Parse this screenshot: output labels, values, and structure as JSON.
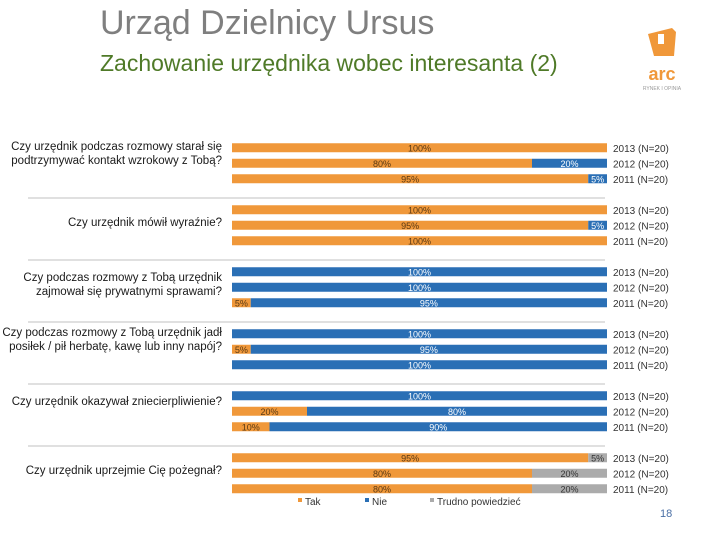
{
  "header": {
    "title": "Urząd Dzielnicy Ursus",
    "subtitle": "Zachowanie urzędnika wobec interesanta (2)"
  },
  "logo": {
    "name": "arc",
    "tagline": "RYNEK I OPINIA"
  },
  "colors": {
    "tak": "#f0983a",
    "nie": "#2a6fb5",
    "trudno": "#ababab",
    "divider": "#c0c0c0"
  },
  "page_number": "18",
  "chart_data": {
    "type": "bar",
    "stacked": true,
    "orientation": "horizontal",
    "x_range": [
      0,
      100
    ],
    "legend": [
      {
        "key": "tak",
        "label": "Tak"
      },
      {
        "key": "nie",
        "label": "Nie"
      },
      {
        "key": "trudno",
        "label": "Trudno powiedzieć"
      }
    ],
    "groups": [
      {
        "question": "Czy urzędnik podczas rozmowy starał się podtrzymywać kontakt wzrokowy z Tobą?",
        "rows": [
          {
            "year": "2013 (N=20)",
            "values": [
              100,
              0,
              0
            ]
          },
          {
            "year": "2012 (N=20)",
            "values": [
              80,
              20,
              0
            ]
          },
          {
            "year": "2011 (N=20)",
            "values": [
              95,
              5,
              0
            ]
          }
        ]
      },
      {
        "question": "Czy urzędnik mówił wyraźnie?",
        "rows": [
          {
            "year": "2013 (N=20)",
            "values": [
              100,
              0,
              0
            ]
          },
          {
            "year": "2012 (N=20)",
            "values": [
              95,
              5,
              0
            ]
          },
          {
            "year": "2011 (N=20)",
            "values": [
              100,
              0,
              0
            ]
          }
        ]
      },
      {
        "question": "Czy podczas rozmowy z Tobą urzędnik zajmował się prywatnymi sprawami?",
        "rows": [
          {
            "year": "2013 (N=20)",
            "values": [
              0,
              100,
              0
            ]
          },
          {
            "year": "2012 (N=20)",
            "values": [
              0,
              100,
              0
            ]
          },
          {
            "year": "2011 (N=20)",
            "values": [
              5,
              95,
              0
            ]
          }
        ]
      },
      {
        "question": "Czy podczas rozmowy z Tobą urzędnik jadł posiłek / pił herbatę, kawę lub inny napój?",
        "rows": [
          {
            "year": "2013 (N=20)",
            "values": [
              0,
              100,
              0
            ]
          },
          {
            "year": "2012 (N=20)",
            "values": [
              5,
              95,
              0
            ]
          },
          {
            "year": "2011 (N=20)",
            "values": [
              0,
              100,
              0
            ]
          }
        ]
      },
      {
        "question": "Czy urzędnik okazywał zniecierpliwienie?",
        "rows": [
          {
            "year": "2013 (N=20)",
            "values": [
              0,
              100,
              0
            ]
          },
          {
            "year": "2012 (N=20)",
            "values": [
              20,
              80,
              0
            ]
          },
          {
            "year": "2011 (N=20)",
            "values": [
              10,
              90,
              0
            ]
          }
        ]
      },
      {
        "question": "Czy urzędnik uprzejmie Cię pożegnał?",
        "rows": [
          {
            "year": "2013 (N=20)",
            "values": [
              95,
              0,
              5
            ]
          },
          {
            "year": "2012 (N=20)",
            "values": [
              80,
              0,
              20
            ]
          },
          {
            "year": "2011 (N=20)",
            "values": [
              80,
              0,
              20
            ]
          }
        ]
      }
    ]
  }
}
